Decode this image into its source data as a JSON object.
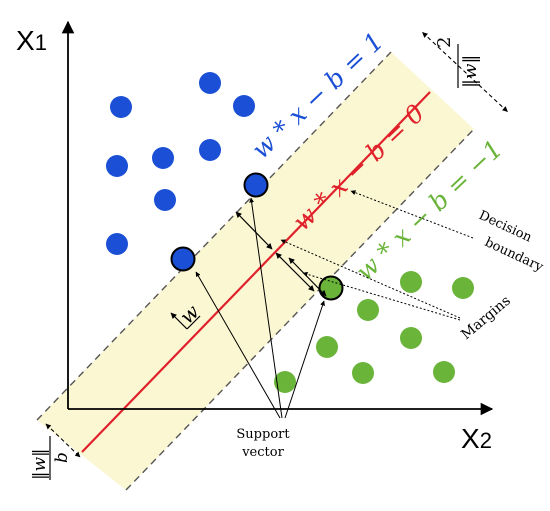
{
  "axes": {
    "y_label_main": "X",
    "y_label_sub": "1",
    "x_label_main": "X",
    "x_label_sub": "2"
  },
  "equations": {
    "upper": "w * x − b = 1",
    "decision": "w * x − b = 0",
    "lower": "w * x − b = −1"
  },
  "labels": {
    "decision_boundary_line1": "Decision",
    "decision_boundary_line2": "boundary",
    "margins": "Margins",
    "support_vector_line1": "Support",
    "support_vector_line2": "vector",
    "normal_vector": "w",
    "margin_width_numerator": "2",
    "margin_width_denominator": "‖w‖",
    "offset_numerator": "b",
    "offset_denominator": "‖w‖"
  },
  "colors": {
    "class_a": "#1a4fd6",
    "class_b": "#6ab43a",
    "decision_line": "#e0202a",
    "margin_band": "#fbf7d2",
    "margin_line": "#555555"
  },
  "points": {
    "class_a": [
      {
        "x1": 8.2,
        "x2": 2.6
      },
      {
        "x1": 7.5,
        "x2": 3.3
      },
      {
        "x1": 6.8,
        "x2": 1.5
      },
      {
        "x1": 6.8,
        "x2": 2.6
      },
      {
        "x1": 6.9,
        "x2": 3.1
      },
      {
        "x1": 5.9,
        "x2": 2.3
      },
      {
        "x1": 4.9,
        "x2": 1.5
      }
    ],
    "class_a_support": [
      {
        "x1": 6.1,
        "x2": 4.1
      },
      {
        "x1": 4.4,
        "x2": 2.6
      }
    ],
    "class_b": [
      {
        "x1": 3.7,
        "x2": 7.5
      },
      {
        "x1": 3.6,
        "x2": 9.5
      },
      {
        "x1": 2.8,
        "x2": 6.9
      },
      {
        "x1": 2.0,
        "x2": 8.7
      },
      {
        "x1": 1.6,
        "x2": 5.6
      },
      {
        "x1": 1.6,
        "x2": 7.8
      },
      {
        "x1": 1.0,
        "x2": 5.6
      },
      {
        "x1": 1.1,
        "x2": 9.3
      },
      {
        "x1": 2.8,
        "x2": 8.2
      }
    ],
    "class_b_support": [
      {
        "x1": 3.4,
        "x2": 6.4
      }
    ]
  }
}
